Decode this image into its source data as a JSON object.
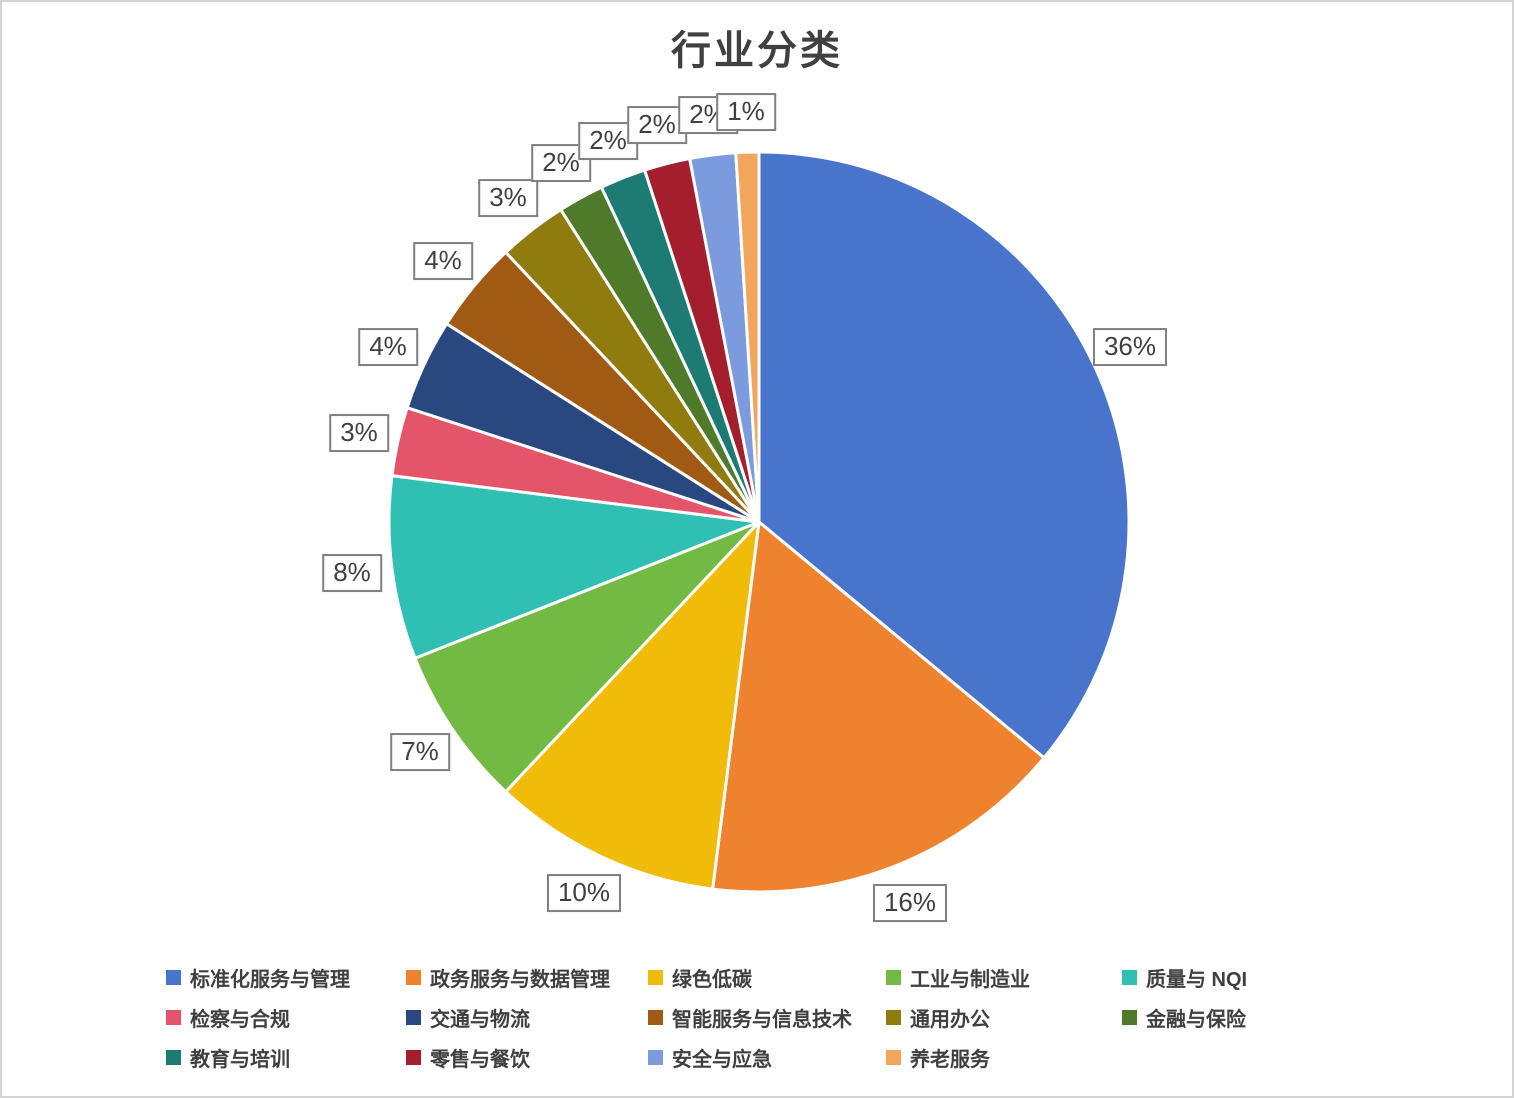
{
  "chart_data": {
    "type": "pie",
    "title": "行业分类",
    "unit": "%",
    "legend_position": "bottom",
    "start_angle_deg": 0,
    "direction": "clockwise",
    "total": 100,
    "series": [
      {
        "label": "标准化服务与管理",
        "value": 36,
        "color": "#4874CB"
      },
      {
        "label": "政务服务与数据管理",
        "value": 16,
        "color": "#EE822F"
      },
      {
        "label": "绿色低碳",
        "value": 10,
        "color": "#F1BB09"
      },
      {
        "label": "工业与制造业",
        "value": 7,
        "color": "#72BA44"
      },
      {
        "label": "质量与 NQI",
        "value": 8,
        "color": "#2FC0B3"
      },
      {
        "label": "检察与合规",
        "value": 3,
        "color": "#E4556A"
      },
      {
        "label": "交通与物流",
        "value": 4,
        "color": "#2A4880"
      },
      {
        "label": "智能服务与信息技术",
        "value": 4,
        "color": "#A05A14"
      },
      {
        "label": "通用办公",
        "value": 3,
        "color": "#8F7B0E"
      },
      {
        "label": "金融与保险",
        "value": 2,
        "color": "#4E7A2A"
      },
      {
        "label": "教育与培训",
        "value": 2,
        "color": "#1E7B73"
      },
      {
        "label": "零售与餐饮",
        "value": 2,
        "color": "#A51E2D"
      },
      {
        "label": "安全与应急",
        "value": 2,
        "color": "#7C9BDE"
      },
      {
        "label": "养老服务",
        "value": 1,
        "color": "#F2A55C"
      }
    ],
    "data_label_format": "{value}%"
  },
  "colors": {
    "title_text": "#404040",
    "data_label_text": "#404040",
    "data_label_border": "#7F7F7F",
    "data_label_background": "#FFFFFF",
    "legend_text": "#3F3F3F",
    "slice_separator": "#FFFFFF",
    "canvas_border": "#D4D4D4",
    "background": "#FFFFFF"
  }
}
